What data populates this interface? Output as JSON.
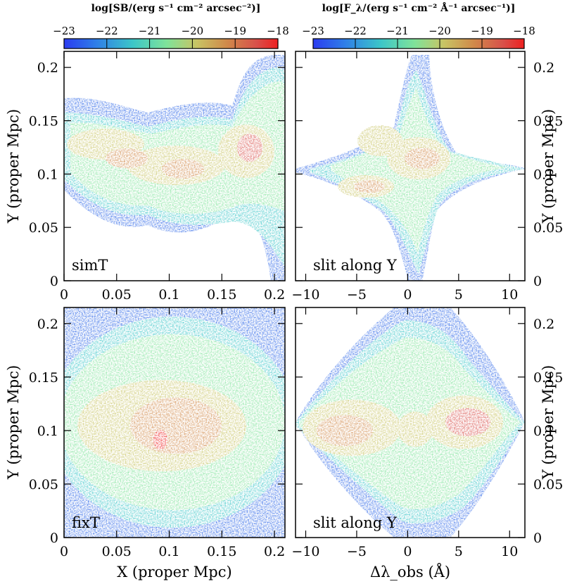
{
  "chart_data": [
    {
      "type": "heatmap",
      "panel_id": "top-left",
      "label": "simT",
      "xlabel": "",
      "ylabel": "Y (proper Mpc)",
      "xlim": [
        0,
        0.21
      ],
      "ylim": [
        0,
        0.215
      ],
      "xticks": [
        "0",
        "0.05",
        "0.1",
        "0.15",
        "0.2"
      ],
      "xtick_values": [
        0,
        0.05,
        0.1,
        0.15,
        0.2
      ],
      "yticks": [
        "0",
        "0.05",
        "0.1",
        "0.15",
        "0.2"
      ],
      "ytick_values": [
        0,
        0.05,
        0.1,
        0.15,
        0.2
      ],
      "colorbar": {
        "title": "log[SB/(erg s⁻¹ cm⁻² arcsec⁻²)]",
        "range": [
          -23,
          -18
        ],
        "ticks": [
          "−23",
          "−22",
          "−21",
          "−20",
          "−19",
          "−18"
        ],
        "tick_values": [
          -23,
          -22,
          -21,
          -20,
          -19,
          -18
        ]
      }
    },
    {
      "type": "heatmap",
      "panel_id": "top-right",
      "label": "slit along Y",
      "xlabel": "",
      "ylabel": "Y (proper Mpc)",
      "xlim": [
        -11,
        11.5
      ],
      "ylim": [
        0,
        0.215
      ],
      "xticks": [
        "−10",
        "−5",
        "0",
        "5",
        "10"
      ],
      "xtick_values": [
        -10,
        -5,
        0,
        5,
        10
      ],
      "yticks": [
        "0",
        "0.05",
        "0.1",
        "0.15",
        "0.2"
      ],
      "ytick_values": [
        0,
        0.05,
        0.1,
        0.15,
        0.2
      ],
      "colorbar": {
        "title": "log[F_λ/(erg s⁻¹ cm⁻² Å⁻¹ arcsec⁻¹)]",
        "range": [
          -23,
          -18
        ],
        "ticks": [
          "−23",
          "−22",
          "−21",
          "−20",
          "−19",
          "−18"
        ],
        "tick_values": [
          -23,
          -22,
          -21,
          -20,
          -19,
          -18
        ]
      }
    },
    {
      "type": "heatmap",
      "panel_id": "bottom-left",
      "label": "fixT",
      "xlabel": "X (proper Mpc)",
      "ylabel": "Y (proper Mpc)",
      "xlim": [
        0,
        0.21
      ],
      "ylim": [
        0,
        0.215
      ],
      "xticks": [
        "0",
        "0.05",
        "0.1",
        "0.15",
        "0.2"
      ],
      "xtick_values": [
        0,
        0.05,
        0.1,
        0.15,
        0.2
      ],
      "yticks": [
        "0",
        "0.05",
        "0.1",
        "0.15",
        "0.2"
      ],
      "ytick_values": [
        0,
        0.05,
        0.1,
        0.15,
        0.2
      ]
    },
    {
      "type": "heatmap",
      "panel_id": "bottom-right",
      "label": "slit along Y",
      "xlabel": "Δλ_obs (Å)",
      "ylabel": "Y (proper Mpc)",
      "xlim": [
        -11,
        11.5
      ],
      "ylim": [
        0,
        0.215
      ],
      "xticks": [
        "−10",
        "−5",
        "0",
        "5",
        "10"
      ],
      "xtick_values": [
        -10,
        -5,
        0,
        5,
        10
      ],
      "yticks": [
        "0",
        "0.05",
        "0.1",
        "0.15",
        "0.2"
      ],
      "ytick_values": [
        0,
        0.05,
        0.1,
        0.15,
        0.2
      ]
    }
  ],
  "palette": {
    "stops": [
      "#2b3cf0",
      "#2f7ee8",
      "#3cc6c8",
      "#7fe39a",
      "#c8c464",
      "#d08a4a",
      "#d8504a",
      "#ee2020"
    ],
    "frame": "#000000",
    "background": "#ffffff"
  }
}
